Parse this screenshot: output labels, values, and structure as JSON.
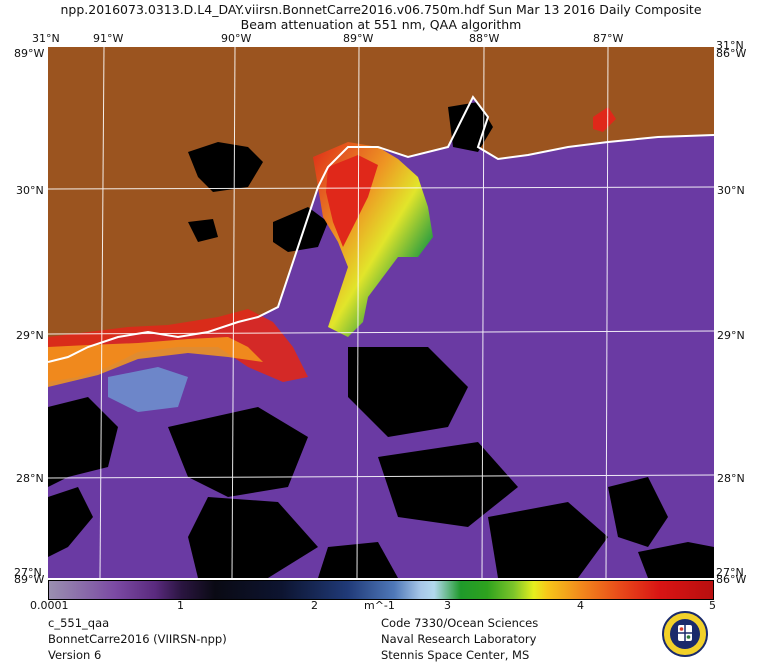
{
  "header": {
    "line1": "npp.2016073.0313.D.L4_DAY.viirsn.BonnetCarre2016.v06.750m.hdf     Sun Mar 13 2016 Daily Composite",
    "line2": "Beam attenuation at 551 nm, QAA algorithm"
  },
  "map": {
    "lon_labels": [
      "91°W",
      "90°W",
      "89°W",
      "88°W",
      "87°W"
    ],
    "lat_labels": [
      "30°N",
      "29°N",
      "28°N"
    ],
    "corner_labels": {
      "top_left_a": "31°N",
      "top_left_b": "89°W",
      "top_right_a": "31°N",
      "top_right_b": "86°W",
      "bottom_left_a": "27°N",
      "bottom_left_b": "89°W",
      "bottom_right_a": "27°N",
      "bottom_right_b": "86°W"
    },
    "colors": {
      "land": "#9b541f",
      "ocean": "#6a3aa3",
      "no_data": "#000000",
      "coastline": "#ffffff",
      "high_attenuation": "#e0281a"
    }
  },
  "colorbar": {
    "min_label": "0.0001",
    "tick_labels": [
      "1",
      "2",
      "3",
      "4",
      "5"
    ],
    "units": "m^-1"
  },
  "footer": {
    "left": [
      "c_551_qaa",
      "BonnetCarre2016 (VIIRSN-npp)",
      "Version 6"
    ],
    "right": [
      "Code 7330/Ocean Sciences",
      "Naval Research Laboratory",
      "Stennis Space Center, MS"
    ]
  },
  "logo": {
    "icon": "naval-research-laboratory-seal-icon"
  }
}
